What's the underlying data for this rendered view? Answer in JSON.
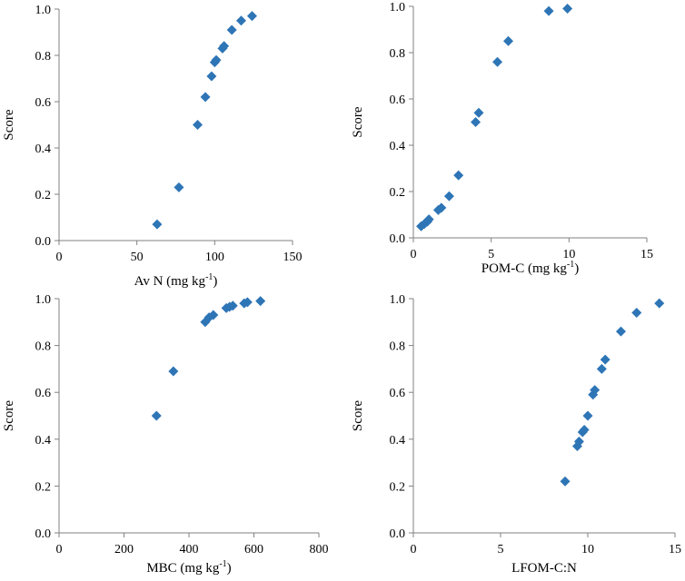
{
  "chart_data": [
    {
      "type": "scatter",
      "title": "",
      "xlabel_prefix": "Av N (mg kg",
      "xlabel_sup": "-1",
      "xlabel_suffix": ")",
      "ylabel": "Score",
      "xlim": [
        0,
        150
      ],
      "ylim": [
        0,
        1.0
      ],
      "xticks": [
        "0",
        "50",
        "100",
        "150"
      ],
      "yticks": [
        "0.0",
        "0.2",
        "0.4",
        "0.6",
        "0.8",
        "1.0"
      ],
      "marker_color": "#2E75B6",
      "series": [
        {
          "name": "Av N",
          "x": [
            63,
            77,
            89,
            94,
            98,
            100,
            101,
            105,
            106,
            111,
            117,
            124
          ],
          "y": [
            0.07,
            0.23,
            0.5,
            0.62,
            0.71,
            0.77,
            0.78,
            0.83,
            0.84,
            0.91,
            0.95,
            0.97
          ]
        }
      ]
    },
    {
      "type": "scatter",
      "title": "",
      "xlabel_prefix": "POM-C (mg kg",
      "xlabel_sup": "-1",
      "xlabel_suffix": ")",
      "ylabel": "Score",
      "xlim": [
        0,
        15
      ],
      "ylim": [
        0,
        1.0
      ],
      "xticks": [
        "0",
        "5",
        "10",
        "15"
      ],
      "yticks": [
        "0.0",
        "0.2",
        "0.4",
        "0.6",
        "0.8",
        "1.0"
      ],
      "marker_color": "#2E75B6",
      "series": [
        {
          "name": "POM-C",
          "x": [
            0.5,
            0.7,
            0.9,
            1.0,
            1.6,
            1.8,
            2.3,
            2.9,
            4.0,
            4.2,
            5.4,
            6.1,
            8.7,
            9.9
          ],
          "y": [
            0.05,
            0.06,
            0.07,
            0.08,
            0.12,
            0.13,
            0.18,
            0.27,
            0.5,
            0.54,
            0.76,
            0.85,
            0.98,
            0.99
          ]
        }
      ]
    },
    {
      "type": "scatter",
      "title": "",
      "xlabel_prefix": "MBC (mg kg",
      "xlabel_sup": "-1",
      "xlabel_suffix": ")",
      "ylabel": "Score",
      "xlim": [
        0,
        800
      ],
      "ylim": [
        0,
        1.0
      ],
      "xticks": [
        "0",
        "200",
        "400",
        "600",
        "800"
      ],
      "yticks": [
        "0.0",
        "0.2",
        "0.4",
        "0.6",
        "0.8",
        "1.0"
      ],
      "marker_color": "#2E75B6",
      "series": [
        {
          "name": "MBC",
          "x": [
            300,
            352,
            450,
            462,
            475,
            515,
            525,
            535,
            570,
            580,
            620
          ],
          "y": [
            0.5,
            0.69,
            0.9,
            0.92,
            0.93,
            0.96,
            0.965,
            0.97,
            0.98,
            0.985,
            0.99
          ]
        }
      ]
    },
    {
      "type": "scatter",
      "title": "",
      "xlabel_prefix": "LFOM-C:N",
      "xlabel_sup": "",
      "xlabel_suffix": "",
      "ylabel": "Score",
      "xlim": [
        0,
        15
      ],
      "ylim": [
        0,
        1.0
      ],
      "xticks": [
        "0",
        "5",
        "10",
        "15"
      ],
      "yticks": [
        "0.0",
        "0.2",
        "0.4",
        "0.6",
        "0.8",
        "1.0"
      ],
      "marker_color": "#2E75B6",
      "series": [
        {
          "name": "LFOM-C:N",
          "x": [
            8.7,
            9.4,
            9.5,
            9.7,
            9.8,
            10.0,
            10.3,
            10.4,
            10.8,
            11.0,
            11.9,
            12.8,
            14.1
          ],
          "y": [
            0.22,
            0.37,
            0.39,
            0.43,
            0.44,
            0.5,
            0.59,
            0.61,
            0.7,
            0.74,
            0.86,
            0.94,
            0.98
          ]
        }
      ]
    }
  ]
}
